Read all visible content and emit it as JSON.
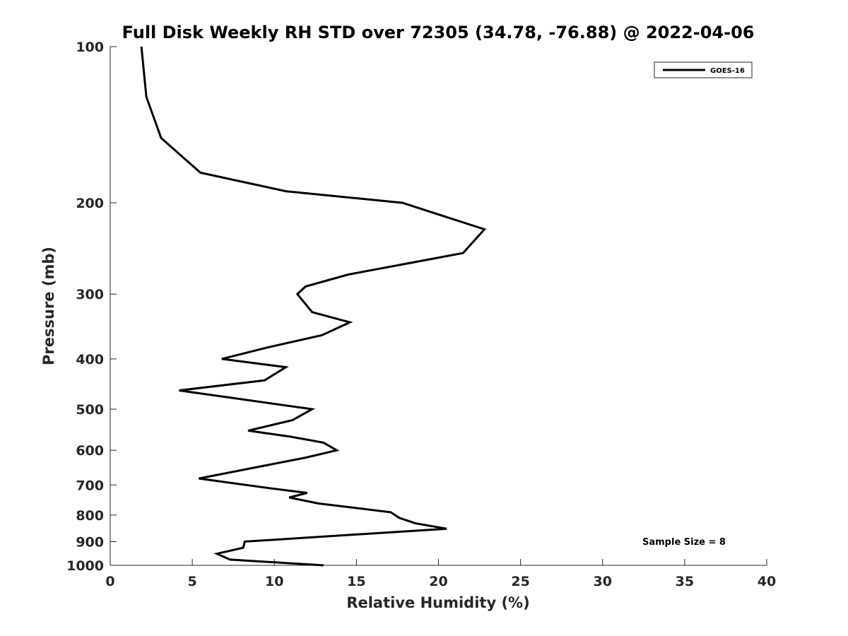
{
  "chart_data": {
    "type": "line",
    "title": "Full Disk Weekly RH STD over 72305 (34.78, -76.88) @ 2022-04-06",
    "xlabel": "Relative Humidity (%)",
    "ylabel": "Pressure (mb)",
    "xlim": [
      0,
      40
    ],
    "ylim": [
      100,
      1000
    ],
    "y_scale": "log",
    "y_direction": "reversed",
    "x_ticks": [
      0,
      5,
      10,
      15,
      20,
      25,
      30,
      35,
      40
    ],
    "y_ticks": [
      100,
      200,
      300,
      400,
      500,
      600,
      700,
      800,
      900,
      1000
    ],
    "grid": false,
    "legend_position": "top-right",
    "annotation": "Sample Size = 8",
    "series": [
      {
        "name": "GOES-16",
        "color": "#000000",
        "points": [
          [
            1.9,
            100
          ],
          [
            2.2,
            125
          ],
          [
            3.1,
            150
          ],
          [
            5.5,
            175
          ],
          [
            10.7,
            190
          ],
          [
            17.8,
            200
          ],
          [
            22.8,
            225
          ],
          [
            21.5,
            250
          ],
          [
            14.5,
            275
          ],
          [
            11.9,
            290
          ],
          [
            11.4,
            300
          ],
          [
            12.3,
            325
          ],
          [
            14.6,
            340
          ],
          [
            12.9,
            360
          ],
          [
            9.6,
            380
          ],
          [
            6.8,
            400
          ],
          [
            10.7,
            415
          ],
          [
            9.4,
            440
          ],
          [
            4.2,
            460
          ],
          [
            12.3,
            500
          ],
          [
            11.1,
            525
          ],
          [
            8.4,
            550
          ],
          [
            11.0,
            565
          ],
          [
            13.0,
            580
          ],
          [
            13.8,
            600
          ],
          [
            11.9,
            620
          ],
          [
            5.4,
            680
          ],
          [
            9.7,
            710
          ],
          [
            12.0,
            725
          ],
          [
            10.9,
            740
          ],
          [
            12.7,
            760
          ],
          [
            17.1,
            790
          ],
          [
            17.6,
            810
          ],
          [
            18.6,
            830
          ],
          [
            20.5,
            850
          ],
          [
            8.2,
            900
          ],
          [
            8.1,
            925
          ],
          [
            6.5,
            950
          ],
          [
            7.3,
            975
          ],
          [
            13.0,
            1000
          ]
        ]
      }
    ]
  }
}
